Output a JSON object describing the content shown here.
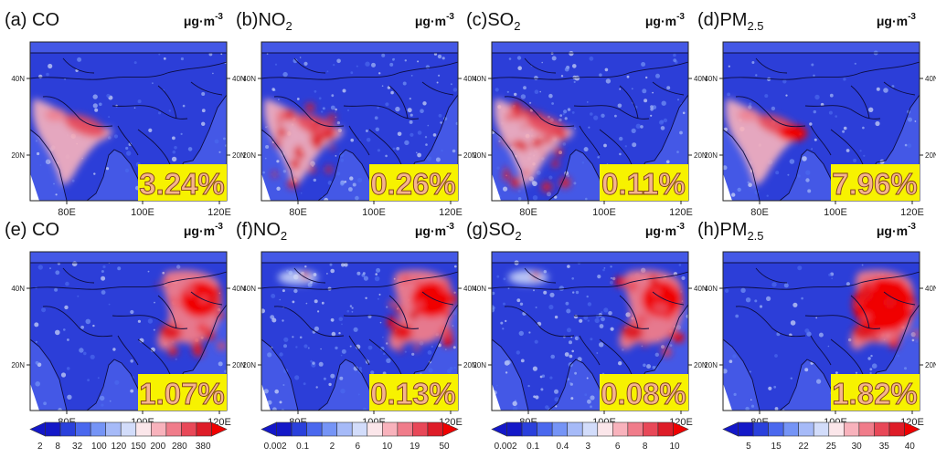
{
  "chart_data": {
    "type": "heatmap",
    "layout": "2x4 panel grid",
    "units_label": "μg·m",
    "units_exponent": "-3",
    "lon_ticks": [
      "80E",
      "100E",
      "120E"
    ],
    "lat_ticks": [
      "40N",
      "20N"
    ],
    "panels": [
      {
        "id": "a",
        "tag": "(a)",
        "species": "CO",
        "subscript": "",
        "percent": "3.24%",
        "row": 0,
        "col": 0,
        "hotspot": "south-asia"
      },
      {
        "id": "b",
        "tag": "(b)",
        "species": "NO",
        "subscript": "2",
        "percent": "0.26%",
        "row": 0,
        "col": 1,
        "hotspot": "south-asia"
      },
      {
        "id": "c",
        "tag": "(c)",
        "species": "SO",
        "subscript": "2",
        "percent": "0.11%",
        "row": 0,
        "col": 2,
        "hotspot": "south-asia"
      },
      {
        "id": "d",
        "tag": "(d)",
        "species": "PM",
        "subscript": "2.5",
        "percent": "7.96%",
        "row": 0,
        "col": 3,
        "hotspot": "south-asia"
      },
      {
        "id": "e",
        "tag": "(e)",
        "species": "CO",
        "subscript": "",
        "percent": "1.07%",
        "row": 1,
        "col": 0,
        "hotspot": "east-asia"
      },
      {
        "id": "f",
        "tag": "(f)",
        "species": "NO",
        "subscript": "2",
        "percent": "0.13%",
        "row": 1,
        "col": 1,
        "hotspot": "east-asia"
      },
      {
        "id": "g",
        "tag": "(g)",
        "species": "SO",
        "subscript": "2",
        "percent": "0.08%",
        "row": 1,
        "col": 2,
        "hotspot": "east-asia"
      },
      {
        "id": "h",
        "tag": "(h)",
        "species": "PM",
        "subscript": "2.5",
        "percent": "1.82%",
        "row": 1,
        "col": 3,
        "hotspot": "east-asia"
      }
    ],
    "colorbars": [
      {
        "col": 0,
        "labels": [
          "2",
          "8",
          "32",
          "100",
          "120",
          "150",
          "200",
          "280",
          "380"
        ]
      },
      {
        "col": 1,
        "labels": [
          "0.002",
          "0.1",
          "2",
          "6",
          "10",
          "19",
          "50"
        ]
      },
      {
        "col": 2,
        "labels": [
          "0.002",
          "0.1",
          "0.4",
          "3",
          "6",
          "8",
          "10"
        ]
      },
      {
        "col": 3,
        "labels": [
          "5",
          "15",
          "22",
          "25",
          "30",
          "35",
          "40"
        ]
      }
    ],
    "colors": {
      "scale": [
        "#1418c8",
        "#2a40dc",
        "#4a68ee",
        "#7594f6",
        "#a6baf8",
        "#d2dcfa",
        "#fbe6ea",
        "#f8b2bc",
        "#f07c8a",
        "#e84858",
        "#de1c28",
        "#f00000"
      ],
      "ocean": "#4458e6",
      "land": "#2c3ed8",
      "border": "#0c0c40",
      "badge": "#f7f200",
      "badge_text": "#f5b48c"
    }
  }
}
